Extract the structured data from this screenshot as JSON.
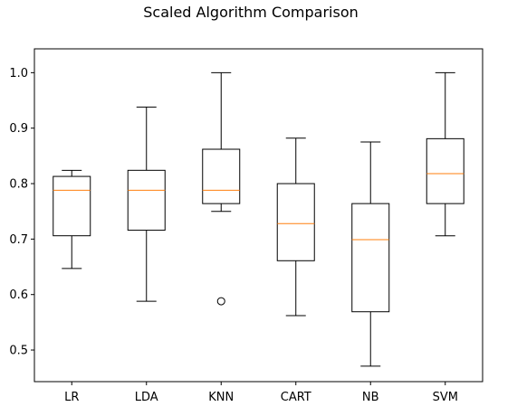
{
  "chart_data": {
    "type": "box",
    "title": "Scaled Algorithm Comparison",
    "xlabel": "",
    "ylabel": "",
    "categories": [
      "LR",
      "LDA",
      "KNN",
      "CART",
      "NB",
      "SVM"
    ],
    "ylim": [
      0.443,
      1.043
    ],
    "yticks": [
      0.5,
      0.6,
      0.7,
      0.8,
      0.9,
      1.0
    ],
    "ytick_labels": [
      "0.5",
      "0.6",
      "0.7",
      "0.8",
      "0.9",
      "1.0"
    ],
    "series": [
      {
        "category": "LR",
        "whisker_low": 0.647,
        "q1": 0.706,
        "median": 0.788,
        "q3": 0.813,
        "whisker_high": 0.824,
        "outliers": []
      },
      {
        "category": "LDA",
        "whisker_low": 0.588,
        "q1": 0.716,
        "median": 0.788,
        "q3": 0.824,
        "whisker_high": 0.938,
        "outliers": []
      },
      {
        "category": "KNN",
        "whisker_low": 0.75,
        "q1": 0.764,
        "median": 0.788,
        "q3": 0.862,
        "whisker_high": 1.0,
        "outliers": [
          0.588
        ]
      },
      {
        "category": "CART",
        "whisker_low": 0.562,
        "q1": 0.661,
        "median": 0.728,
        "q3": 0.8,
        "whisker_high": 0.882,
        "outliers": []
      },
      {
        "category": "NB",
        "whisker_low": 0.471,
        "q1": 0.569,
        "median": 0.699,
        "q3": 0.764,
        "whisker_high": 0.875,
        "outliers": []
      },
      {
        "category": "SVM",
        "whisker_low": 0.706,
        "q1": 0.764,
        "median": 0.818,
        "q3": 0.881,
        "whisker_high": 1.0,
        "outliers": []
      }
    ],
    "grid": false,
    "legend": "none"
  },
  "colors": {
    "box_edge": "#000000",
    "median_line": "#ff7f0e",
    "axes": "#000000",
    "background": "#ffffff"
  }
}
